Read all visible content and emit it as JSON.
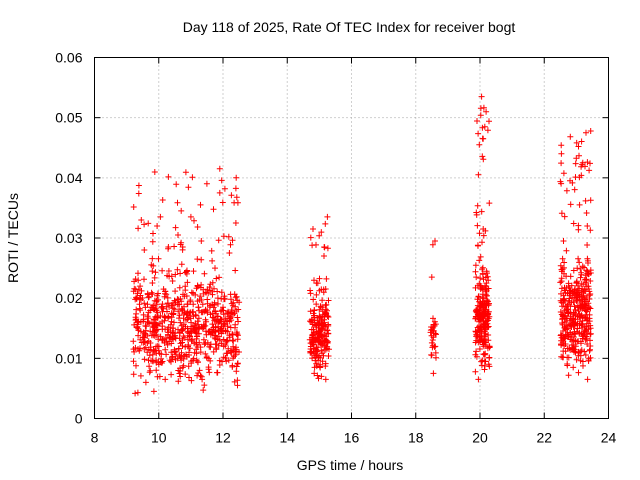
{
  "chart_data": {
    "type": "scatter",
    "title": "Day 118 of 2025, Rate Of TEC Index for receiver bogt",
    "xlabel": "GPS time / hours",
    "ylabel": "ROTI / TECUs",
    "xlim": [
      8,
      24
    ],
    "ylim": [
      0,
      0.06
    ],
    "x_ticks": [
      8,
      10,
      12,
      14,
      16,
      18,
      20,
      22,
      24
    ],
    "y_ticks": [
      0,
      0.01,
      0.02,
      0.03,
      0.04,
      0.05,
      0.06
    ],
    "x_tick_labels": [
      "8",
      "10",
      "12",
      "14",
      "16",
      "18",
      "20",
      "22",
      "24"
    ],
    "y_tick_labels": [
      "0",
      "0.01",
      "0.02",
      "0.03",
      "0.04",
      "0.05",
      "0.06"
    ],
    "grid": true,
    "marker": "+",
    "marker_color": "#ff0000",
    "series": [
      {
        "name": "ROTI",
        "clusters": [
          {
            "x_range": [
              9.2,
              12.5
            ],
            "y_range": [
              0.003,
              0.041
            ],
            "y_center": 0.014,
            "count": 700
          },
          {
            "x_range": [
              14.7,
              15.3
            ],
            "y_range": [
              0.005,
              0.033
            ],
            "y_center": 0.013,
            "count": 200
          },
          {
            "x_range": [
              18.45,
              18.65
            ],
            "y_range": [
              0.007,
              0.03
            ],
            "y_center": 0.013,
            "count": 25
          },
          {
            "x_range": [
              19.85,
              20.3
            ],
            "y_range": [
              0.006,
              0.054
            ],
            "y_center": 0.016,
            "count": 230
          },
          {
            "x_range": [
              22.5,
              23.45
            ],
            "y_range": [
              0.005,
              0.048
            ],
            "y_center": 0.016,
            "count": 380
          }
        ],
        "points": [
          [
            9.3,
            0.0165
          ],
          [
            9.35,
            0.0043
          ],
          [
            9.42,
            0.022
          ],
          [
            9.5,
            0.0135
          ],
          [
            9.55,
            0.028
          ],
          [
            9.6,
            0.006
          ],
          [
            9.65,
            0.019
          ],
          [
            9.72,
            0.0105
          ],
          [
            9.8,
            0.0245
          ],
          [
            9.85,
            0.0045
          ],
          [
            9.9,
            0.0155
          ],
          [
            9.95,
            0.032
          ],
          [
            10.0,
            0.009
          ],
          [
            10.05,
            0.0335
          ],
          [
            10.1,
            0.013
          ],
          [
            10.15,
            0.0215
          ],
          [
            10.2,
            0.0065
          ],
          [
            10.3,
            0.0285
          ],
          [
            10.4,
            0.0175
          ],
          [
            10.5,
            0.011
          ],
          [
            10.6,
            0.0305
          ],
          [
            10.7,
            0.0345
          ],
          [
            10.75,
            0.0085
          ],
          [
            10.9,
            0.019
          ],
          [
            11.0,
            0.0335
          ],
          [
            11.1,
            0.0125
          ],
          [
            11.2,
            0.0265
          ],
          [
            11.3,
            0.0355
          ],
          [
            11.35,
            0.0065
          ],
          [
            11.5,
            0.039
          ],
          [
            11.6,
            0.0145
          ],
          [
            11.75,
            0.025
          ],
          [
            11.9,
            0.0375
          ],
          [
            12.0,
            0.0185
          ],
          [
            12.1,
            0.0095
          ],
          [
            12.2,
            0.0275
          ],
          [
            12.3,
            0.013
          ],
          [
            12.4,
            0.0325
          ],
          [
            12.45,
            0.0055
          ],
          [
            11.9,
            0.0415
          ],
          [
            14.8,
            0.0315
          ],
          [
            14.85,
            0.0085
          ],
          [
            14.95,
            0.0225
          ],
          [
            15.0,
            0.0135
          ],
          [
            15.05,
            0.0185
          ],
          [
            15.1,
            0.0095
          ],
          [
            15.15,
            0.0285
          ],
          [
            15.2,
            0.0065
          ],
          [
            15.25,
            0.0335
          ],
          [
            15.3,
            0.0115
          ],
          [
            18.5,
            0.0235
          ],
          [
            18.55,
            0.0135
          ],
          [
            18.6,
            0.0295
          ],
          [
            18.55,
            0.0075
          ],
          [
            18.5,
            0.0105
          ],
          [
            19.95,
            0.0405
          ],
          [
            20.0,
            0.0145
          ],
          [
            20.05,
            0.0535
          ],
          [
            20.1,
            0.0465
          ],
          [
            20.15,
            0.0095
          ],
          [
            20.2,
            0.0225
          ],
          [
            20.1,
            0.0315
          ],
          [
            20.15,
            0.0485
          ],
          [
            19.95,
            0.0065
          ],
          [
            20.1,
            0.0195
          ],
          [
            22.6,
            0.0295
          ],
          [
            22.7,
            0.0155
          ],
          [
            22.8,
            0.0395
          ],
          [
            22.9,
            0.0085
          ],
          [
            23.0,
            0.0225
          ],
          [
            23.1,
            0.0355
          ],
          [
            23.2,
            0.0425
          ],
          [
            23.3,
            0.0475
          ],
          [
            23.35,
            0.0065
          ],
          [
            23.4,
            0.0185
          ]
        ]
      }
    ]
  }
}
